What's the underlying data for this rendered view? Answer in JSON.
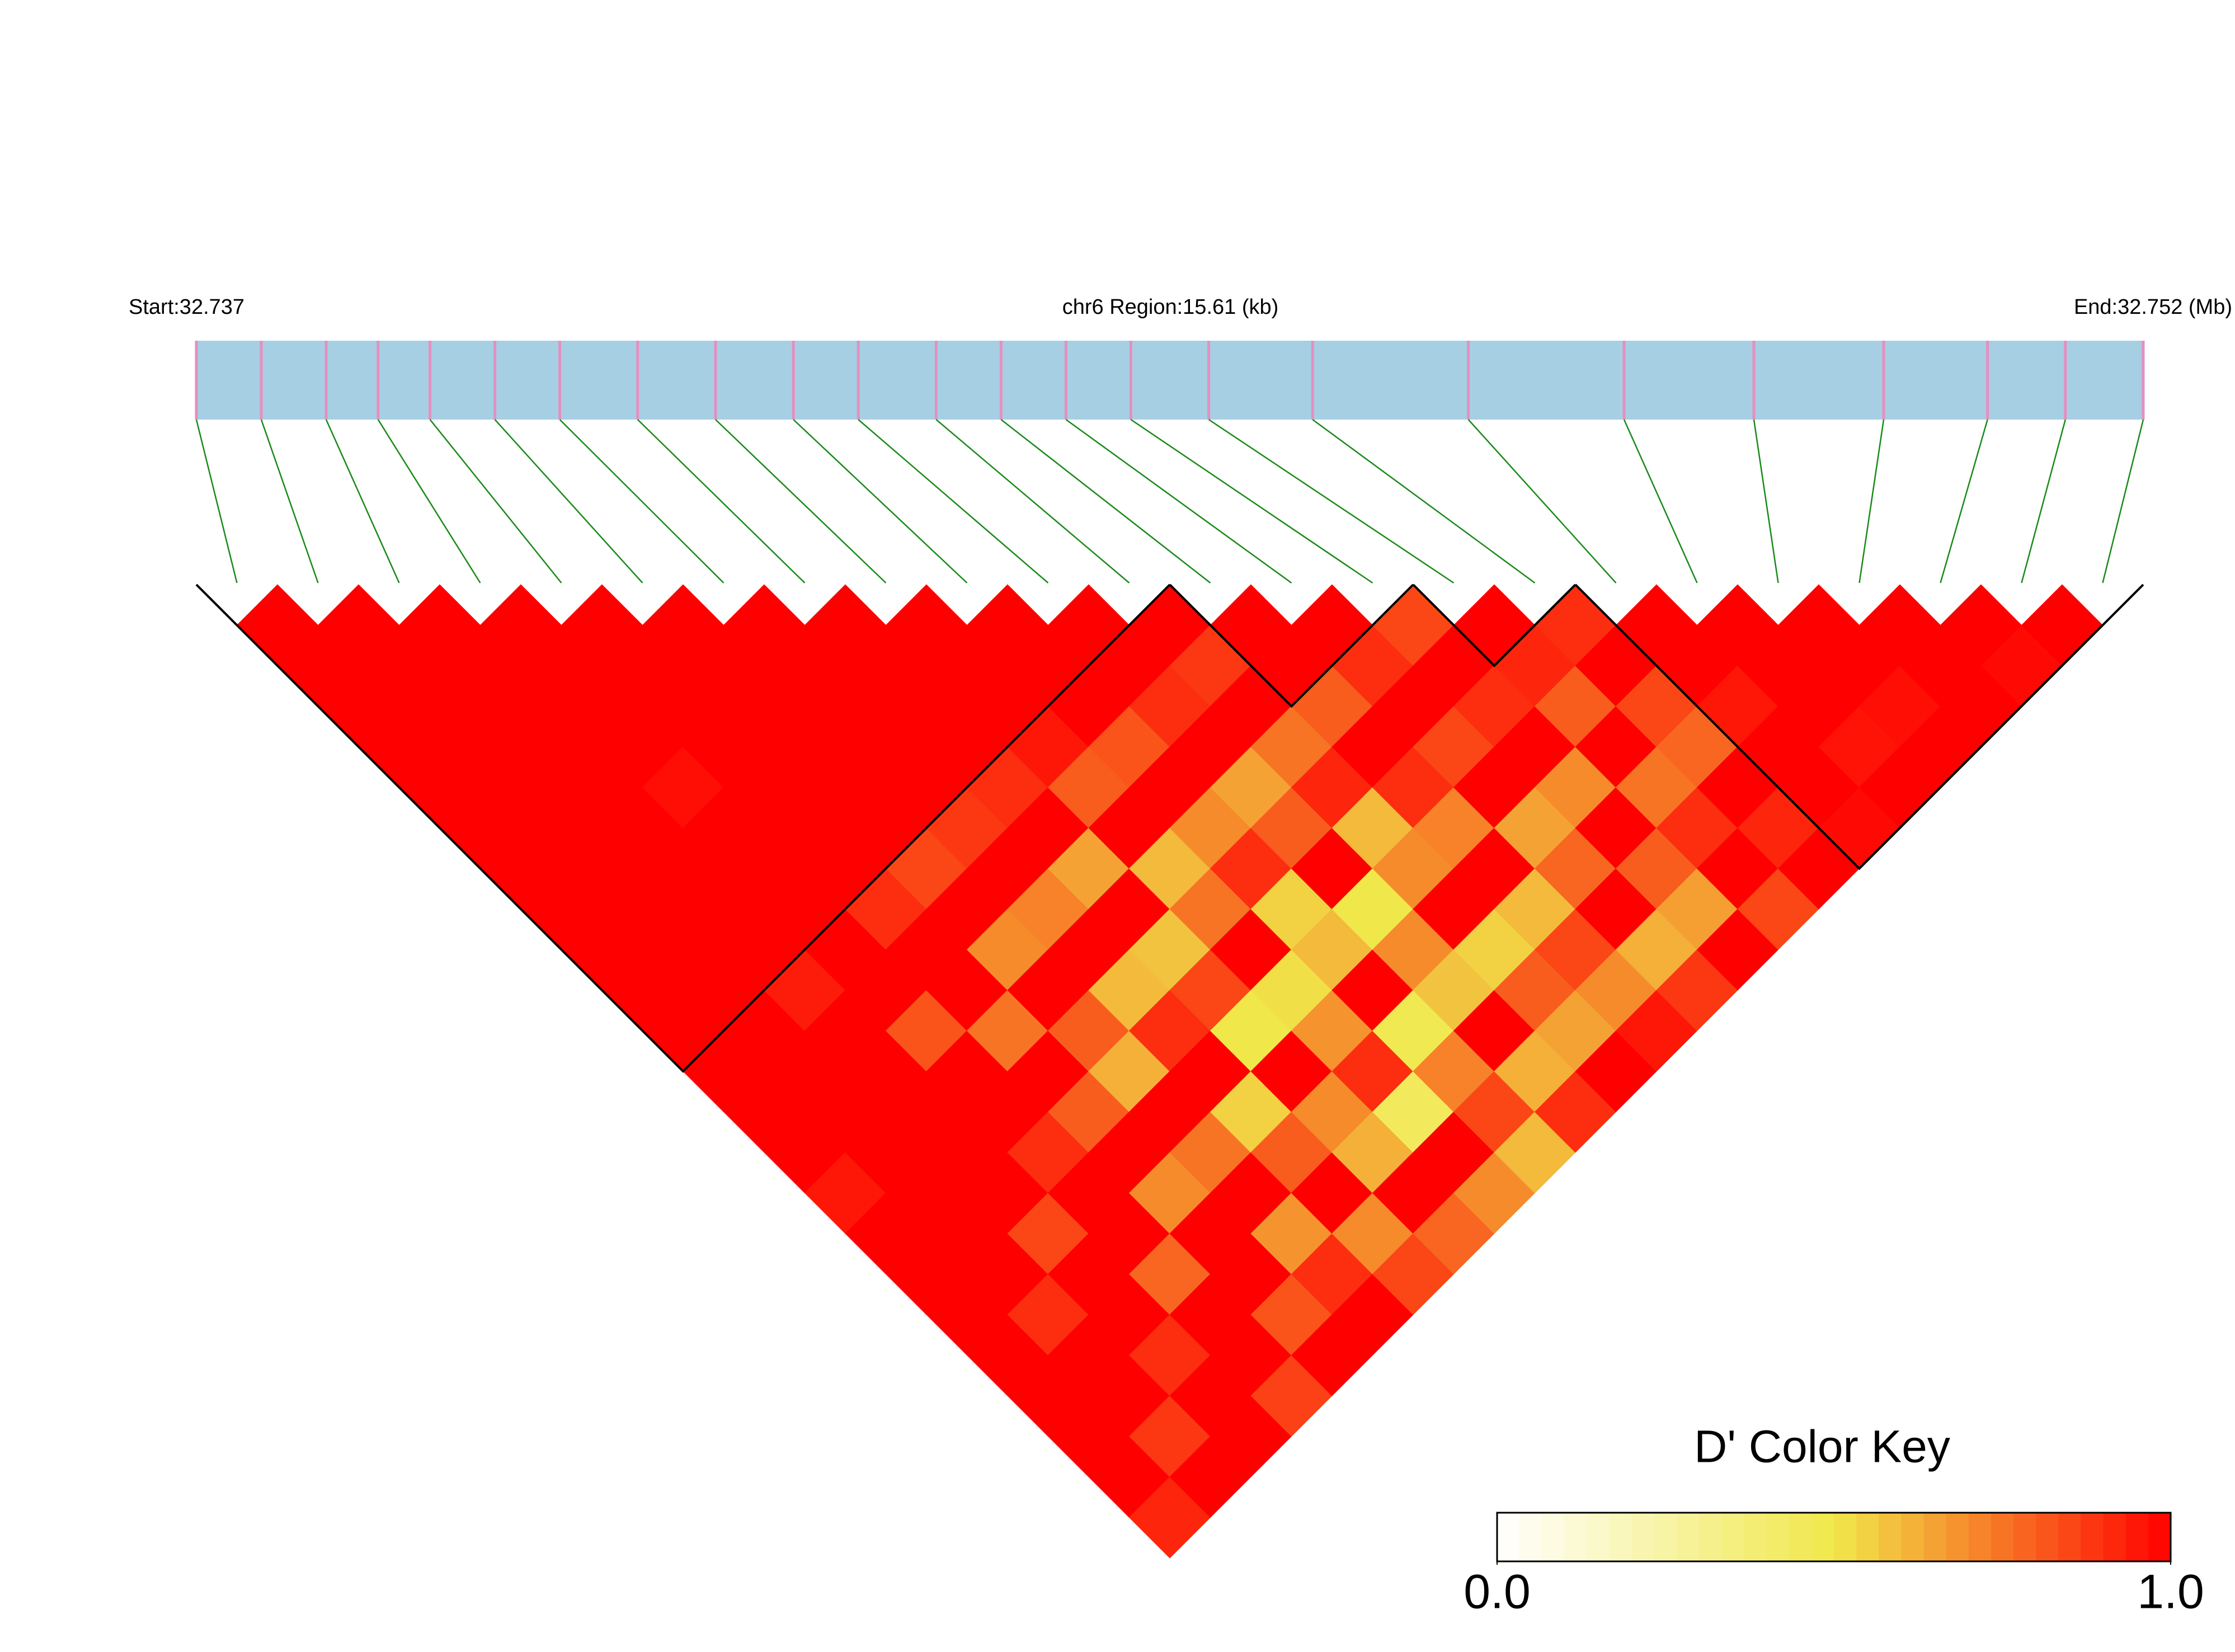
{
  "chart_data": {
    "type": "ld_heatmap",
    "start_label": "Start:32.737",
    "region_label": "chr6 Region:15.61 (kb)",
    "end_label": "End:32.752 (Mb)",
    "xlim": [
      32.737,
      32.752
    ],
    "positions": [
      32.737,
      32.7375,
      32.738,
      32.7384,
      32.7388,
      32.7393,
      32.7398,
      32.7404,
      32.741,
      32.7416,
      32.7421,
      32.7427,
      32.7432,
      32.7437,
      32.7442,
      32.7448,
      32.7456,
      32.7468,
      32.748,
      32.749,
      32.75,
      32.7508,
      32.7514,
      32.752
    ],
    "values": [
      [
        1,
        1,
        1,
        1,
        1,
        1,
        1,
        1,
        1,
        1,
        1,
        1,
        1,
        1,
        0.95,
        1,
        1,
        1,
        1,
        1,
        1,
        1,
        0.92
      ],
      [
        1,
        1,
        1,
        1,
        1,
        1,
        1,
        1,
        1,
        1,
        1,
        1,
        1,
        1,
        1,
        1,
        1,
        0.9,
        1,
        1,
        0.88,
        1
      ],
      [
        1,
        1,
        1,
        1,
        1,
        1,
        1,
        1,
        1,
        0.94,
        1,
        1,
        1,
        1,
        1,
        0.85,
        1,
        1,
        0.9,
        1,
        1
      ],
      [
        1,
        1,
        1,
        1,
        0.97,
        1,
        1,
        1,
        1,
        1,
        0.82,
        1,
        1,
        0.9,
        1,
        1,
        0.78,
        1,
        1,
        0.86
      ],
      [
        1,
        1,
        1,
        1,
        1,
        1,
        1,
        0.9,
        1,
        1,
        0.75,
        1,
        0.8,
        1,
        0.7,
        1,
        1,
        0.82,
        1
      ],
      [
        1,
        1,
        1,
        1,
        1,
        1,
        0.85,
        1,
        0.7,
        1,
        0.8,
        0.62,
        1,
        0.75,
        1,
        0.68,
        0.9,
        1
      ],
      [
        1,
        1,
        1,
        1,
        1,
        0.88,
        1,
        0.72,
        1,
        0.6,
        0.9,
        1,
        0.55,
        0.8,
        1,
        0.7,
        0.85
      ],
      [
        1,
        1,
        1,
        1,
        0.9,
        1,
        0.65,
        1,
        0.58,
        0.85,
        0.5,
        1,
        0.7,
        0.62,
        1,
        0.78
      ],
      [
        1,
        1,
        1,
        0.95,
        0.8,
        1,
        0.6,
        0.75,
        1,
        0.52,
        0.68,
        0.9,
        0.45,
        1,
        0.7
      ],
      [
        1,
        1,
        1,
        0.82,
        1,
        0.7,
        0.9,
        0.55,
        0.6,
        1,
        0.48,
        0.72,
        0.85,
        0.6
      ],
      [
        1,
        1,
        0.9,
        1,
        0.65,
        0.8,
        1,
        0.5,
        0.7,
        0.58,
        1,
        0.62,
        0.9
      ],
      [
        1,
        0.88,
        1,
        0.75,
        0.92,
        0.6,
        0.7,
        1,
        0.55,
        0.8,
        0.65,
        1
      ],
      [
        1,
        1,
        0.8,
        1,
        0.9,
        0.72,
        1,
        0.6,
        0.85,
        0.7,
        0.95
      ],
      [
        1,
        0.9,
        1,
        0.85,
        1,
        0.65,
        0.78,
        1,
        0.62,
        0.88
      ],
      [
        0.85,
        1,
        0.9,
        1,
        0.7,
        1,
        0.8,
        0.66,
        1
      ],
      [
        1,
        0.92,
        0.8,
        1,
        0.75,
        0.9,
        1,
        0.85
      ],
      [
        0.9,
        1,
        0.85,
        0.78,
        1,
        0.92,
        1
      ],
      [
        1,
        1,
        0.95,
        1,
        1,
        0.98
      ],
      [
        1,
        1,
        1,
        0.96,
        1
      ],
      [
        1,
        1,
        0.97,
        1
      ],
      [
        1,
        1,
        1
      ],
      [
        1,
        0.98
      ],
      [
        1
      ]
    ],
    "blocks": [
      [
        0,
        11
      ],
      [
        12,
        14
      ],
      [
        15,
        16
      ],
      [
        17,
        23
      ]
    ],
    "snp_color": "#e58fc0",
    "bar_color": "#a6cfe3",
    "connector_color": "#1a8a1a",
    "colorbar": {
      "title": "D' Color Key",
      "lim": [
        0,
        1
      ],
      "ticks": [
        {
          "value": 0,
          "label": "0.0"
        },
        {
          "value": 1,
          "label": "1.0"
        }
      ],
      "colors": [
        "#ffffff",
        "#f0e84a",
        "#ff0000"
      ]
    }
  }
}
